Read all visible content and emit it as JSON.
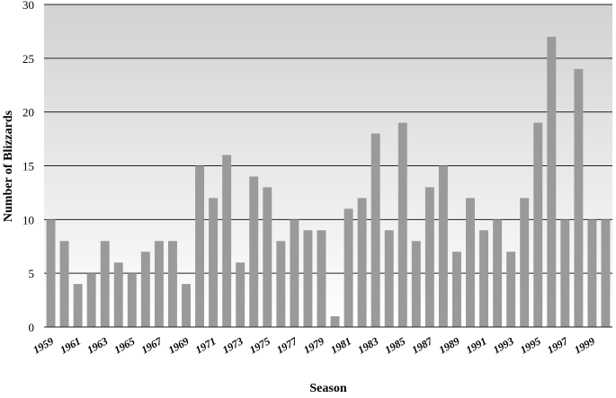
{
  "chart_data": {
    "type": "bar",
    "xlabel": "Season",
    "ylabel": "Number of Blizzards",
    "ylim": [
      0,
      30
    ],
    "yticks": [
      "0",
      "5",
      "10",
      "15",
      "20",
      "25",
      "30"
    ],
    "grid": true,
    "categories": [
      "1959",
      "1960",
      "1961",
      "1962",
      "1963",
      "1964",
      "1965",
      "1966",
      "1967",
      "1968",
      "1969",
      "1970",
      "1971",
      "1972",
      "1973",
      "1974",
      "1975",
      "1976",
      "1977",
      "1978",
      "1979",
      "1980",
      "1981",
      "1982",
      "1983",
      "1984",
      "1985",
      "1986",
      "1987",
      "1988",
      "1989",
      "1990",
      "1991",
      "1992",
      "1993",
      "1994",
      "1995",
      "1996",
      "1997",
      "1998",
      "1999",
      "2000"
    ],
    "tick_labels": [
      "1959",
      "1961",
      "1963",
      "1965",
      "1967",
      "1969",
      "1971",
      "1973",
      "1975",
      "1977",
      "1979",
      "1981",
      "1983",
      "1985",
      "1987",
      "1989",
      "1991",
      "1993",
      "1995",
      "1997",
      "1999"
    ],
    "values": [
      10,
      8,
      4,
      5,
      8,
      6,
      5,
      7,
      8,
      8,
      4,
      15,
      12,
      16,
      6,
      14,
      13,
      8,
      10,
      9,
      9,
      1,
      11,
      12,
      18,
      9,
      19,
      8,
      13,
      15,
      7,
      12,
      9,
      10,
      7,
      12,
      19,
      27,
      10,
      24,
      10,
      10
    ],
    "colors": {
      "bar": "#9a9a9a",
      "bg_top": "#d2d2d2",
      "bg_bottom": "#ffffff",
      "grid": "#222222"
    }
  }
}
